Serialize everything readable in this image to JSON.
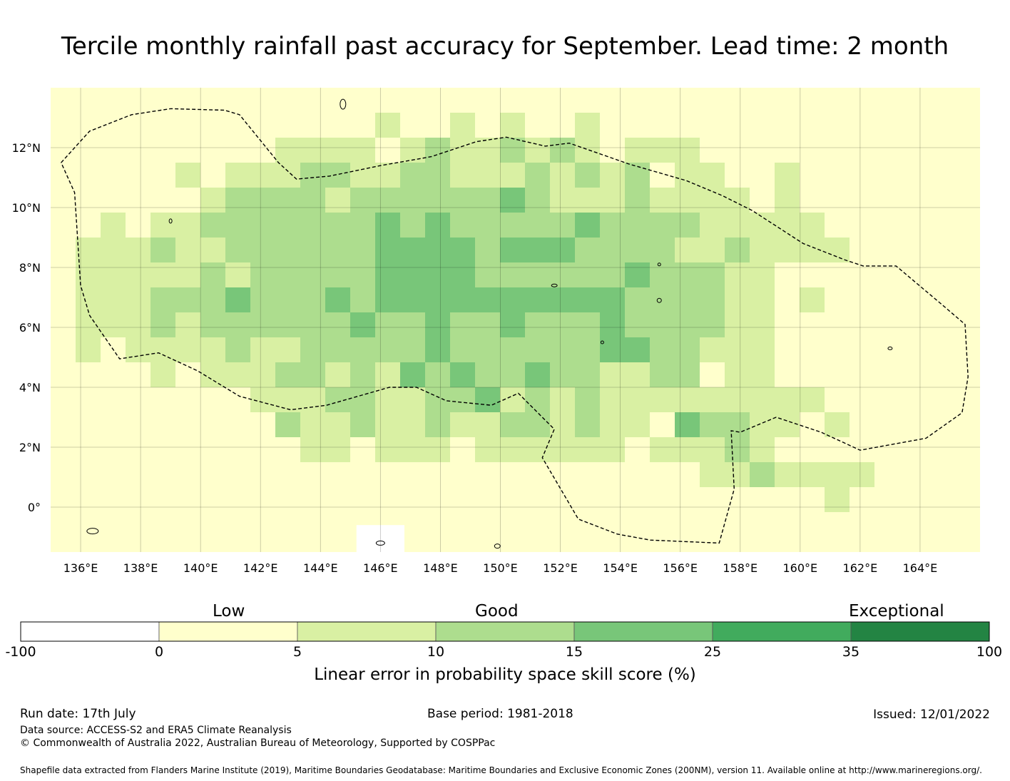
{
  "title": "Tercile monthly rainfall past accuracy for September. Lead time: 2 month",
  "map": {
    "lon_range": [
      135,
      166
    ],
    "lat_range": [
      -1.5,
      14
    ],
    "lon_ticks": [
      "136°E",
      "138°E",
      "140°E",
      "142°E",
      "144°E",
      "146°E",
      "148°E",
      "150°E",
      "152°E",
      "154°E",
      "156°E",
      "158°E",
      "160°E",
      "162°E",
      "164°E"
    ],
    "lat_ticks": [
      "12°N",
      "10°N",
      "8°N",
      "6°N",
      "4°N",
      "2°N",
      "0°"
    ],
    "grid_lines": true,
    "boundary_style": "dashed"
  },
  "colorbar": {
    "categories": [
      "Low",
      "Good",
      "Exceptional"
    ],
    "tick_labels": [
      "-100",
      "0",
      "5",
      "10",
      "15",
      "25",
      "35",
      "100"
    ],
    "colors": [
      "#ffffff",
      "#ffffcc",
      "#d9f0a3",
      "#addd8e",
      "#78c679",
      "#41ab5d",
      "#238443"
    ],
    "label": "Linear error in probability space skill score (%)"
  },
  "footer": {
    "run_date": "Run date: 17th July",
    "base_period": "Base period: 1981-2018",
    "issued": "Issued: 12/01/2022",
    "data_source": "Data source: ACCESS-S2 and ERA5 Climate Reanalysis",
    "copyright": "© Commonwealth of Australia 2022, Australian Bureau of Meteorology, Supported by COSPPac",
    "shapefile": "Shapefile data extracted from Flanders Marine Institute (2019), Maritime Boundaries Geodatabase: Maritime Boundaries and Exclusive Economic Zones (200NM), version 11. Available online at http://www.marineregions.org/."
  }
}
